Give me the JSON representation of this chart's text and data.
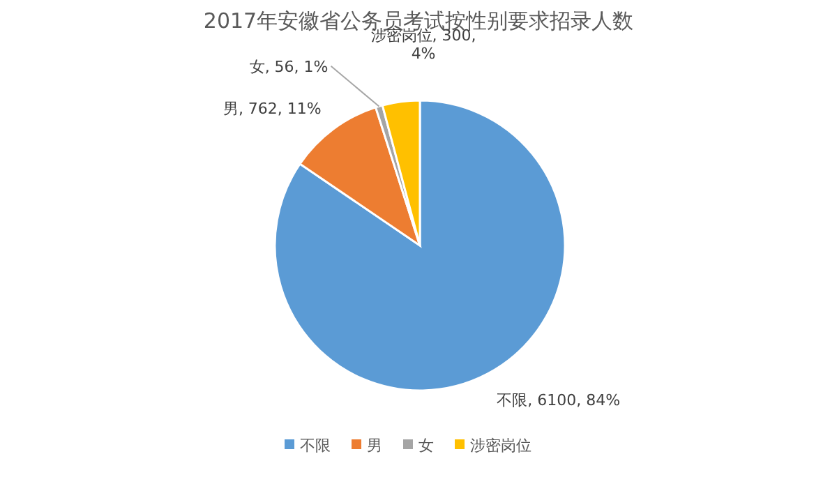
{
  "chart_data": {
    "type": "pie",
    "title": "2017年安徽省公务员考试按性别要求招录人数",
    "categories": [
      "不限",
      "男",
      "女",
      "涉密岗位"
    ],
    "values": [
      6100,
      762,
      56,
      300
    ],
    "colors": [
      "#5b9bd5",
      "#ed7d31",
      "#a5a5a5",
      "#ffc000"
    ],
    "value_labels": [
      "不限, 6100, 84%",
      "男, 762, 11%",
      "女, 56, 1%",
      "涉密岗位, 300, 4%"
    ],
    "data_labels": true,
    "legend": "bottom"
  }
}
